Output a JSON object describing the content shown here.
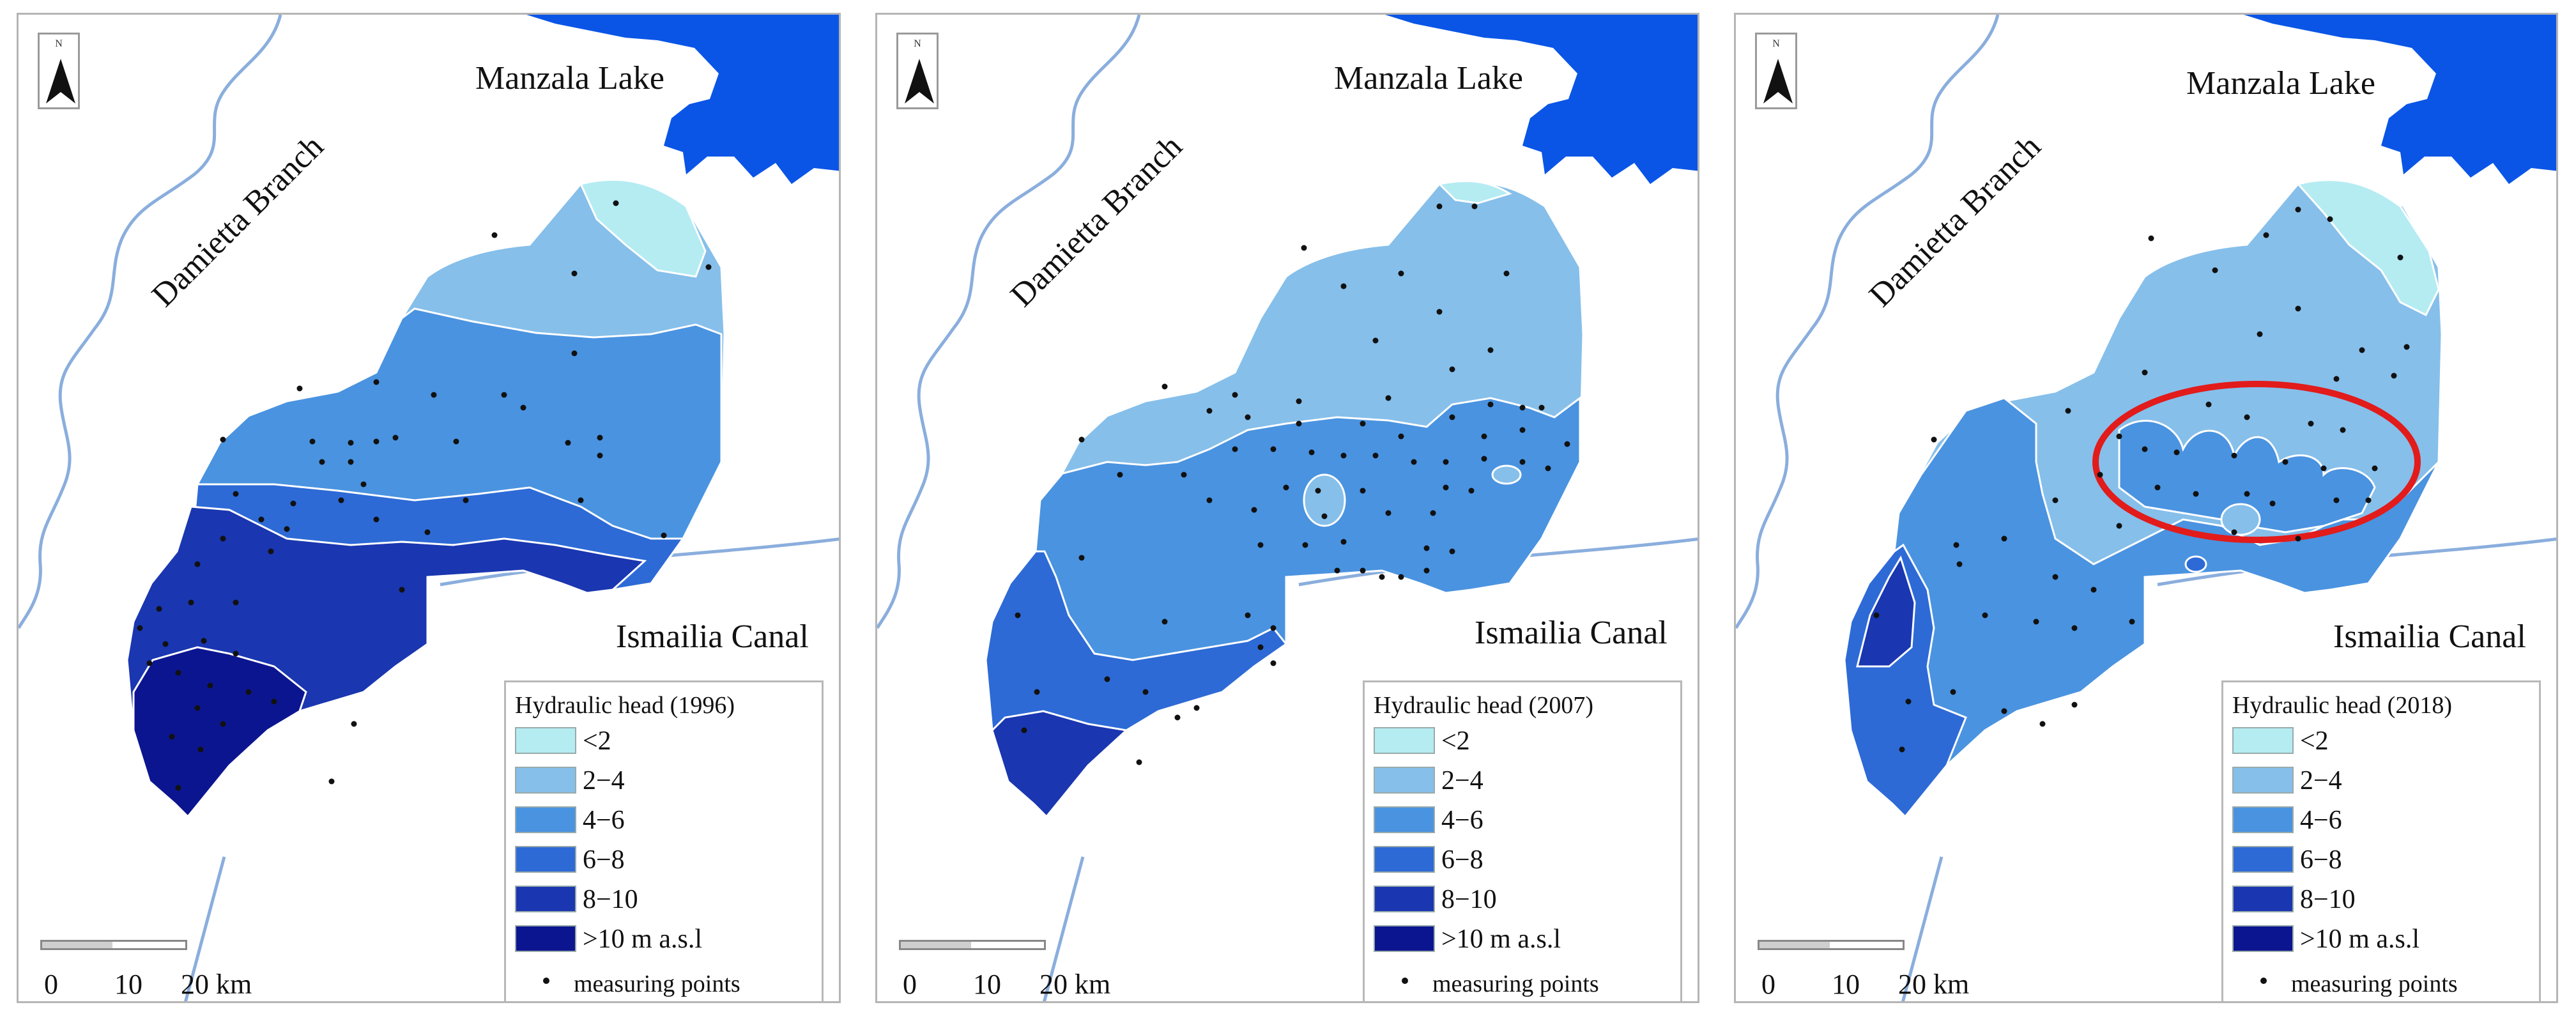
{
  "panels": [
    {
      "year_title": "Hydraulic head (1996)",
      "labels": {
        "lake": "Manzala Lake",
        "branch": "Damietta Branch",
        "canal": "Ismailia Canal"
      },
      "highlight": false
    },
    {
      "year_title": "Hydraulic head (2007)",
      "labels": {
        "lake": "Manzala Lake",
        "branch": "Damietta Branch",
        "canal": "Ismailia Canal"
      },
      "highlight": false
    },
    {
      "year_title": "Hydraulic head (2018)",
      "labels": {
        "lake": "Manzala Lake",
        "branch": "Damietta Branch",
        "canal": "Ismailia Canal"
      },
      "highlight": true
    }
  ],
  "north_label": "N",
  "legend": {
    "classes": [
      {
        "label": "<2",
        "color": "#b4ecf2"
      },
      {
        "label": "2−4",
        "color": "#86bfea"
      },
      {
        "label": "4−6",
        "color": "#4a93e0"
      },
      {
        "label": "6−8",
        "color": "#2d6ad6"
      },
      {
        "label": "8−10",
        "color": "#1a36b0"
      },
      {
        "label": ">10 m a.s.l",
        "color": "#0c1590"
      }
    ],
    "points_label": "measuring points"
  },
  "scale": {
    "ticks": [
      "0",
      "10",
      "20 km"
    ]
  },
  "colors": {
    "water": "#0a55e6",
    "river": "#8aaedd",
    "highlight": "#e21b1b",
    "boundary": "#ffffff"
  }
}
